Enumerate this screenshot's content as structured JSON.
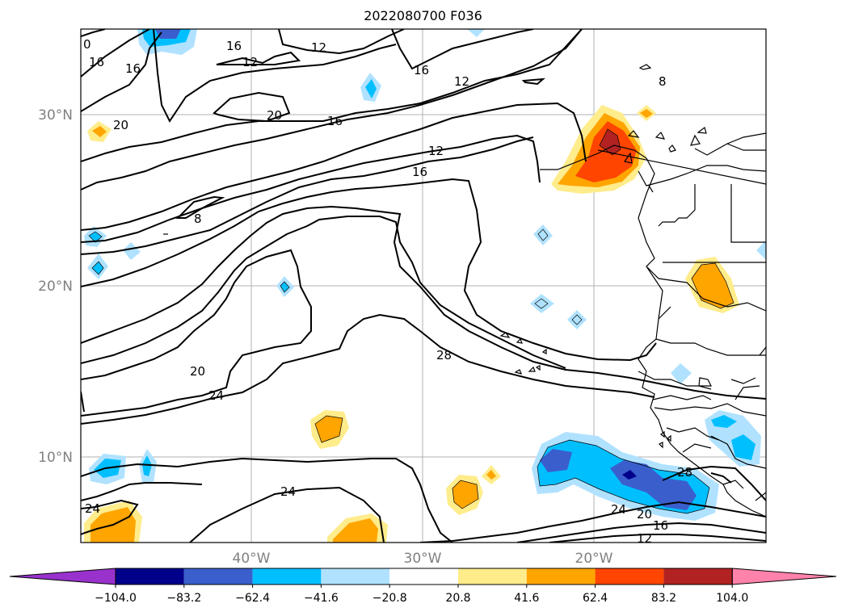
{
  "title": "2022080700 F036",
  "axes": {
    "lat_labels": [
      "30°N",
      "20°N",
      "10°N"
    ],
    "lon_labels": [
      "40°W",
      "30°W",
      "20°W"
    ]
  },
  "contour_labels": [
    "20",
    "16",
    "12",
    "16",
    "20",
    "16",
    "12",
    "8",
    "16",
    "12",
    "16",
    "20",
    "8",
    "28",
    "20",
    "24",
    "24",
    "24",
    "28",
    "24",
    "20",
    "16",
    "12",
    "20",
    "8",
    "0"
  ],
  "colorbar": {
    "colors": [
      "#9932cc",
      "#00008b",
      "#3a5fcd",
      "#00bfff",
      "#b0e2ff",
      "#ffffff",
      "#ffec8b",
      "#ffa500",
      "#ff4500",
      "#b22222",
      "#ff82ab"
    ],
    "tick_labels": [
      "−104.0",
      "−83.2",
      "−62.4",
      "−41.6",
      "−20.8",
      "20.8",
      "41.6",
      "62.4",
      "83.2",
      "104.0"
    ]
  }
}
